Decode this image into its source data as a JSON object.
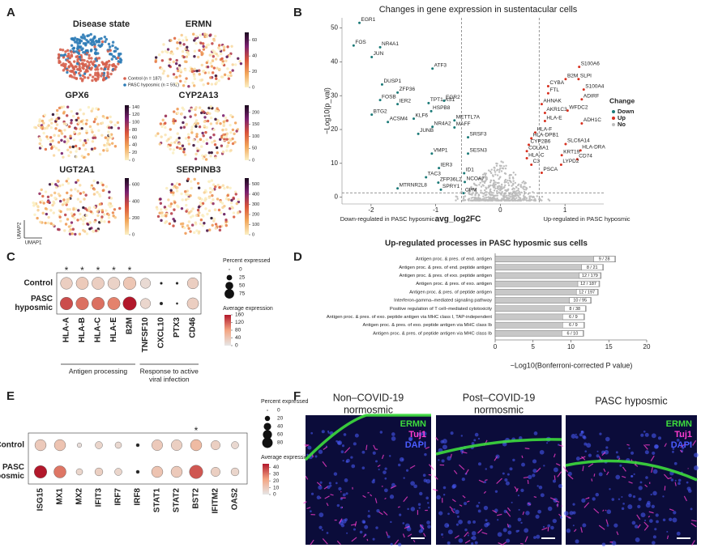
{
  "chart_data": [
    {
      "type": "umap",
      "panel": "A",
      "x_label": "UMAP1",
      "y_label": "UMAP2",
      "plots": [
        {
          "title": "Disease state",
          "legend": [
            "Control (n = 187)",
            "PASC hyposmic (n = 592)"
          ],
          "colors": [
            "#d6604d",
            "#2c7bb6"
          ]
        },
        {
          "title": "ERMN",
          "colorbar_lim": [
            0,
            70
          ],
          "colorbar_ticks": [
            0,
            20,
            40,
            60
          ]
        },
        {
          "title": "GPX6",
          "colorbar_lim": [
            0,
            145
          ],
          "colorbar_ticks": [
            0,
            20,
            40,
            60,
            80,
            100,
            120,
            140
          ]
        },
        {
          "title": "CYP2A13",
          "colorbar_lim": [
            0,
            230
          ],
          "colorbar_ticks": [
            0,
            50,
            100,
            150,
            200
          ]
        },
        {
          "title": "UGT2A1",
          "colorbar_lim": [
            0,
            680
          ],
          "colorbar_ticks": [
            0,
            200,
            400,
            600
          ]
        },
        {
          "title": "SERPINB3",
          "colorbar_lim": [
            0,
            560
          ],
          "colorbar_ticks": [
            0,
            100,
            200,
            300,
            400,
            500
          ]
        }
      ]
    },
    {
      "type": "scatter",
      "panel": "B",
      "title": "Changes in gene expression in sustentacular cells",
      "x_label": "avg_log2FC",
      "y_label": "−Log10(p_val)",
      "xlim": [
        -2.45,
        1.6
      ],
      "ylim": [
        -2,
        53
      ],
      "xticks": [
        -2,
        -1,
        0,
        1
      ],
      "yticks": [
        0,
        10,
        20,
        30,
        40,
        50
      ],
      "x_cutoffs": [
        -0.6,
        0.6
      ],
      "y_cutoff": 1.3,
      "annotations": [
        "Down-regulated in PASC hyposmic",
        "Up-regulated in PASC hyposmic"
      ],
      "legend_title": "Change",
      "series": [
        {
          "name": "Down",
          "color": "#1b7a78",
          "labels": [
            "EGR1",
            "FOS",
            "NR4A1",
            "JUN",
            "ATF3",
            "DUSP1",
            "ZFP36",
            "FOSB",
            "IER2",
            "TPT1-AS1",
            "HSPB8",
            "EGR2",
            "BTG2",
            "ACSM4",
            "KLF6",
            "METTL7A",
            "NR4A2",
            "MAFF",
            "JUNB",
            "SRSF3",
            "VMP1",
            "SESN3",
            "IER3",
            "ID1",
            "TAC3",
            "ZFP36L2",
            "NCOA7",
            "MTRNR2L8",
            "SPRY1",
            "CPM"
          ],
          "x": [
            -2.18,
            -2.27,
            -1.86,
            -1.99,
            -1.05,
            -1.83,
            -1.59,
            -1.86,
            -1.59,
            -1.11,
            -1.07,
            -0.87,
            -1.99,
            -1.74,
            -1.34,
            -0.71,
            -1.05,
            -0.71,
            -1.27,
            -0.5,
            -1.06,
            -0.5,
            -0.95,
            -0.56,
            -1.15,
            -0.96,
            -0.55,
            -1.59,
            -0.92,
            -0.57
          ],
          "y": [
            51.5,
            44.8,
            44.3,
            41.4,
            38,
            33.3,
            30.9,
            28.7,
            27.5,
            27.8,
            25.4,
            28.5,
            24.4,
            22.2,
            23.2,
            22.7,
            20.8,
            20.6,
            18.7,
            17.7,
            12.9,
            12.9,
            8.6,
            7.1,
            5.9,
            4.3,
            4.5,
            2.6,
            2.2,
            1.2
          ]
        },
        {
          "name": "Up",
          "color": "#d7301f",
          "labels": [
            "S100A6",
            "B2M",
            "SLPI",
            "S100A4",
            "CYBA",
            "ADIRF",
            "FTL",
            "AHNAK",
            "AKR1C3",
            "WFDC2",
            "HLA-E",
            "ADH1C",
            "HLA-F",
            "HLA-DPB1",
            "CYP2B6",
            "SLC6A14",
            "HLA-DRA",
            "COL6A1",
            "KRT19",
            "CD74",
            "HLA-C",
            "C3",
            "LYPD2",
            "PSCA"
          ],
          "x": [
            1.22,
            1.01,
            1.21,
            1.29,
            0.74,
            1.26,
            0.74,
            0.64,
            0.69,
            1.04,
            0.69,
            1.26,
            0.54,
            0.48,
            0.44,
            1.01,
            1.24,
            0.41,
            0.95,
            1.19,
            0.41,
            0.48,
            0.94,
            0.64
          ],
          "y": [
            38.5,
            34.9,
            34.9,
            31.8,
            32.8,
            28.9,
            30.7,
            27.5,
            24.9,
            25.6,
            22.5,
            21.8,
            19.1,
            17.4,
            15.5,
            15.7,
            13.8,
            13.6,
            12.4,
            11.2,
            11.5,
            9.6,
            9.6,
            7.2
          ]
        },
        {
          "name": "No",
          "color": "#bdbdbd"
        }
      ]
    },
    {
      "type": "dotplot",
      "panel": "C",
      "categories": [
        "HLA-A",
        "HLA-B",
        "HLA-C",
        "HLA-E",
        "B2M",
        "TNFSF10",
        "CXCL10",
        "PTX3",
        "CD46"
      ],
      "significance": [
        "*",
        "*",
        "*",
        "*",
        "*",
        null,
        null,
        null,
        null
      ],
      "groups": [
        [
          "Antigen processing"
        ],
        [
          "Response to active",
          "viral infection"
        ]
      ],
      "group_of": [
        0,
        0,
        0,
        0,
        0,
        1,
        1,
        1,
        1
      ],
      "series": [
        {
          "label_lines": [
            "Control"
          ],
          "pct": [
            75,
            80,
            80,
            78,
            85,
            55,
            3,
            3,
            65
          ],
          "avg": [
            30,
            35,
            30,
            25,
            40,
            15,
            2,
            2,
            30
          ]
        },
        {
          "label_lines": [
            "PASC",
            "hyposmic"
          ],
          "pct": [
            85,
            85,
            85,
            82,
            95,
            55,
            5,
            2,
            70
          ],
          "avg": [
            130,
            110,
            110,
            100,
            160,
            20,
            5,
            2,
            30
          ]
        }
      ],
      "size_legend_title": "Percent expressed",
      "pct_lim": [
        0,
        100
      ],
      "size_ticks": [
        0,
        25,
        50,
        75
      ],
      "color_legend_title": "Average expression",
      "color_lim": [
        0,
        160
      ],
      "color_ticks": [
        0,
        40,
        80,
        120,
        160
      ],
      "colors": [
        "#e6e6e6",
        "#f4a582",
        "#b2182b"
      ]
    },
    {
      "type": "bar",
      "panel": "D",
      "title": "Up-regulated processes in PASC hyposmic sus cells",
      "x_label": "−Log10(Bonferroni-corrected P value)",
      "categories": [
        "Antigen proc. & pres. of end. antigen",
        "Antigen proc. & pres. of end. peptide antigen",
        "Antigen proc. & pres. of exo. peptide antigen",
        "Antigen proc. & pres. of exo. antigen",
        "Antigen proc. & pres. of peptide antigen",
        "Interferon-gamma–mediated signaling pathway",
        "Positive regulation of T cell–mediated cytotoxicity",
        "Antigen proc. & pres. of exo. peptide antigen via MHC class I, TAP-independent",
        "Antigen proc. & pres. of exo. peptide antigen via MHC class Ib",
        "Antigen proc. & pres. of peptide antigen via MHC class Ib"
      ],
      "values": [
        15.9,
        14.3,
        14.0,
        13.8,
        13.6,
        12.7,
        12.0,
        11.8,
        11.8,
        11.7
      ],
      "counts": [
        "9 / 28",
        "8 / 21",
        "12 / 179",
        "12 / 187",
        "12 / 197",
        "10 / 95",
        "8 / 38",
        "6 / 9",
        "6 / 9",
        "6 / 10"
      ],
      "color": "#c8c8c8",
      "xlim": [
        0,
        20
      ],
      "xticks": [
        0,
        5,
        10,
        15,
        20
      ]
    },
    {
      "type": "dotplot",
      "panel": "E",
      "categories": [
        "ISG15",
        "MX1",
        "MX2",
        "IFIT3",
        "IRF7",
        "IRF8",
        "STAT1",
        "STAT2",
        "BST2",
        "IFITM2",
        "OAS2"
      ],
      "significance": [
        null,
        null,
        null,
        null,
        null,
        null,
        null,
        null,
        "*",
        null,
        null
      ],
      "series": [
        {
          "label_lines": [
            "Control"
          ],
          "pct": [
            60,
            60,
            10,
            25,
            20,
            5,
            55,
            55,
            60,
            40,
            25
          ],
          "avg": [
            10,
            12,
            3,
            6,
            5,
            2,
            10,
            8,
            15,
            8,
            5
          ]
        },
        {
          "label_lines": [
            "PASC",
            "hyposmic"
          ],
          "pct": [
            75,
            70,
            20,
            30,
            25,
            5,
            60,
            60,
            85,
            40,
            30
          ],
          "avg": [
            45,
            30,
            6,
            8,
            6,
            2,
            12,
            10,
            35,
            8,
            6
          ]
        }
      ],
      "size_legend_title": "Percent expressed",
      "pct_lim": [
        0,
        100
      ],
      "size_ticks": [
        0,
        20,
        40,
        60,
        80
      ],
      "color_legend_title": "Average expression",
      "color_lim": [
        0,
        45
      ],
      "color_ticks": [
        0,
        10,
        20,
        30,
        40
      ],
      "colors": [
        "#e6e6e6",
        "#f4a582",
        "#b2182b"
      ]
    },
    {
      "type": "image",
      "panel": "F",
      "images": [
        {
          "title_lines": [
            "Non–COVID-19",
            "normosmic"
          ],
          "channels": [
            "ERMN",
            "Tuj1",
            "DAPI"
          ]
        },
        {
          "title_lines": [
            "Post–COVID-19",
            "normosmic"
          ]
        },
        {
          "title_lines": [
            "PASC hyposmic"
          ],
          "channels": [
            "ERMN",
            "Tuj1",
            "DAPI"
          ]
        }
      ],
      "channel_colors": [
        "#3ddc3d",
        "#ff3ccf",
        "#4a5cff"
      ]
    }
  ]
}
